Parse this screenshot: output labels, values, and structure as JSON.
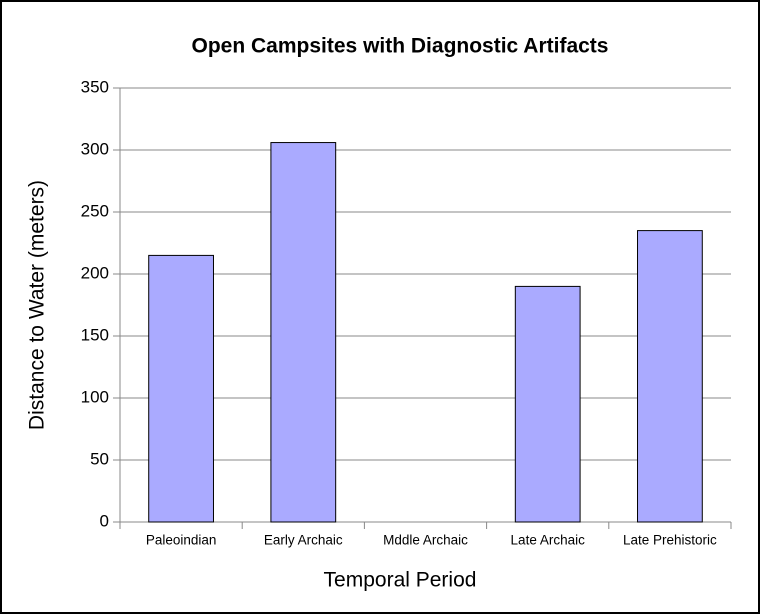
{
  "chart_data": {
    "type": "bar",
    "title": "Open Campsites with Diagnostic Artifacts",
    "x_label": "Temporal Period",
    "y_label": "Distance to Water (meters)",
    "categories": [
      "Paleoindian",
      "Early Archaic",
      "Mddle Archaic",
      "Late Archaic",
      "Late Prehistoric"
    ],
    "values": [
      215,
      306,
      null,
      190,
      235
    ],
    "color": "#aaaaff",
    "ylim": [
      0,
      350
    ],
    "yticks": [
      0,
      50,
      100,
      150,
      200,
      250,
      300,
      350
    ],
    "grid": true
  }
}
